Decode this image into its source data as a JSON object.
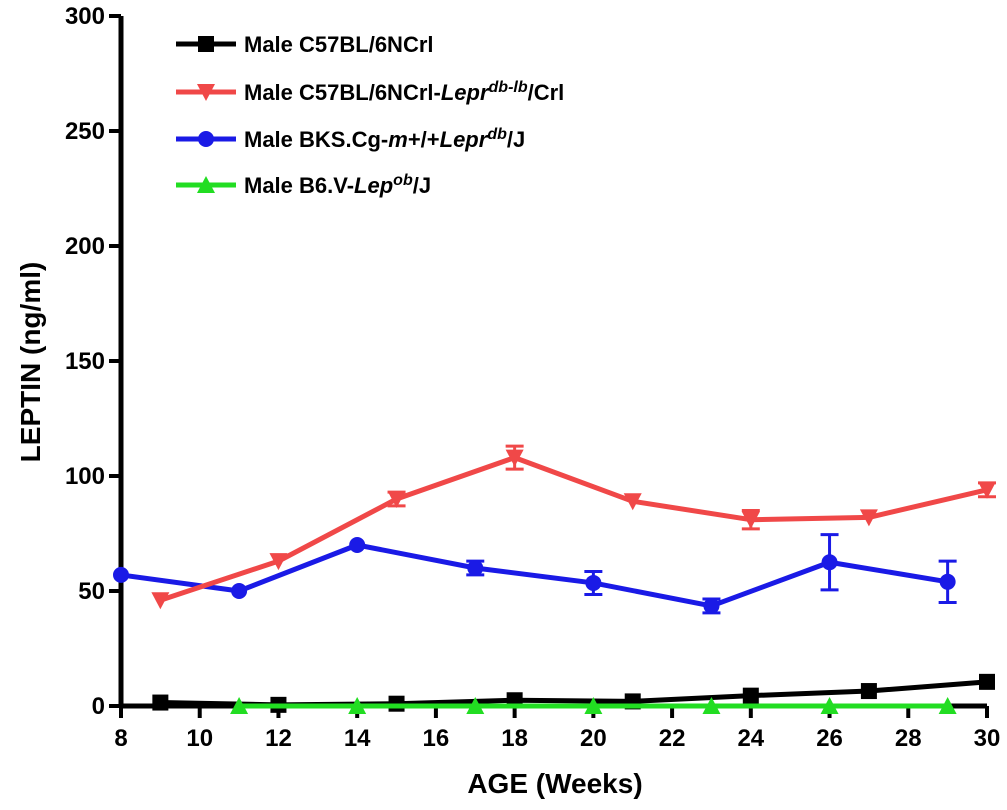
{
  "chart_data": {
    "type": "line",
    "xlabel": "AGE (Weeks)",
    "ylabel": "LEPTIN (ng/ml)",
    "xlim": [
      8,
      30
    ],
    "ylim": [
      0,
      300
    ],
    "x_ticks": [
      "8",
      "10",
      "12",
      "14",
      "16",
      "18",
      "20",
      "22",
      "24",
      "26",
      "28",
      "30"
    ],
    "y_ticks": [
      "0",
      "50",
      "100",
      "150",
      "200",
      "250",
      "300"
    ],
    "grid": false,
    "legend_position": "top-left",
    "series": [
      {
        "name": "Male C57BL/6NCrl",
        "legend_parts": [
          {
            "text": "Male C57BL/6NCrl"
          }
        ],
        "color": "#000000",
        "marker": "square",
        "x": [
          9,
          12,
          15,
          18,
          21,
          24,
          27,
          30
        ],
        "y": [
          1.5,
          0.5,
          1,
          2.5,
          2,
          4.5,
          6.5,
          10.5
        ],
        "err": [
          0,
          0,
          0,
          0,
          0,
          0,
          0,
          0
        ]
      },
      {
        "name": "Male C57BL/6NCrl-Lepr db-lb /Crl",
        "legend_parts": [
          {
            "text": "Male C57BL/6NCrl-"
          },
          {
            "text": "Lepr",
            "italic": true
          },
          {
            "text": "db-lb",
            "italic": true,
            "sup": true
          },
          {
            "text": "/Crl"
          }
        ],
        "color": "#f04848",
        "marker": "triangle-down",
        "x": [
          9,
          12,
          15,
          18,
          21,
          24,
          27,
          30
        ],
        "y": [
          46,
          63,
          90,
          108,
          89,
          81,
          82,
          94
        ],
        "err": [
          0,
          0,
          3,
          5,
          0,
          4,
          0,
          3
        ]
      },
      {
        "name": "Male BKS.Cg-m+/+Lepr db /J",
        "legend_parts": [
          {
            "text": "Male BKS.Cg-"
          },
          {
            "text": "m",
            "italic": true
          },
          {
            "text": "+/+"
          },
          {
            "text": "Lepr",
            "italic": true
          },
          {
            "text": "db",
            "italic": true,
            "sup": true
          },
          {
            "text": "/J"
          }
        ],
        "color": "#1a1ae6",
        "marker": "circle",
        "x": [
          8,
          11,
          14,
          17,
          20,
          23,
          26,
          29
        ],
        "y": [
          57,
          50,
          70,
          60,
          53.5,
          43.5,
          62.5,
          54
        ],
        "err": [
          0,
          0,
          0,
          3,
          5,
          3,
          12,
          9
        ]
      },
      {
        "name": "Male B6.V-Lep ob /J",
        "legend_parts": [
          {
            "text": "Male B6.V-"
          },
          {
            "text": "Lep",
            "italic": true
          },
          {
            "text": "ob",
            "italic": true,
            "sup": true
          },
          {
            "text": "/J"
          }
        ],
        "color": "#22dd22",
        "marker": "triangle-up",
        "x": [
          11,
          14,
          17,
          20,
          23,
          26,
          29
        ],
        "y": [
          0,
          0,
          0,
          0,
          0,
          0,
          0
        ],
        "err": [
          0,
          0,
          0,
          0,
          0,
          0,
          0
        ]
      }
    ]
  }
}
